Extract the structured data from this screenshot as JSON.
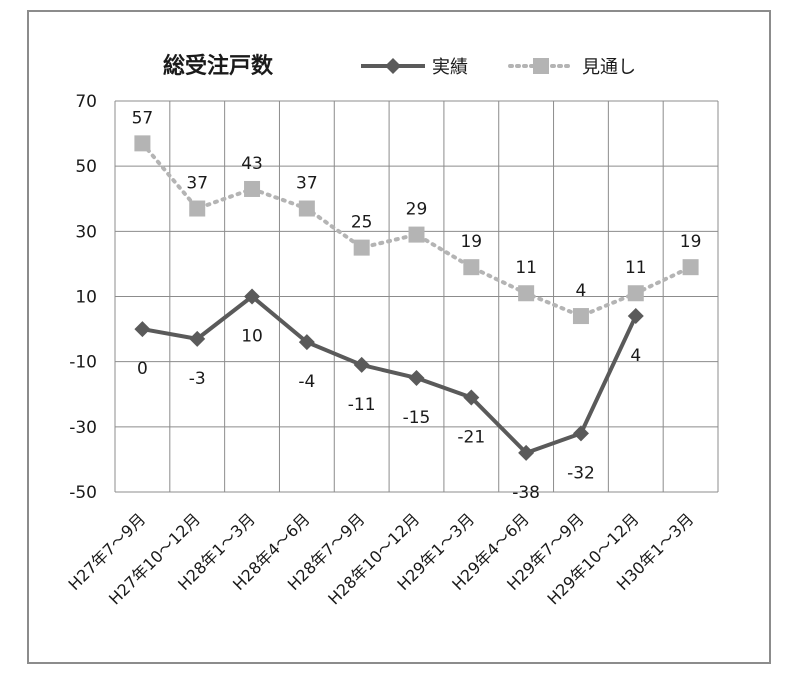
{
  "chart_data": {
    "type": "line",
    "title": "総受注戸数",
    "categories": [
      "H27年7～9月",
      "H27年10～12月",
      "H28年1～3月",
      "H28年4～6月",
      "H28年7～9月",
      "H28年10～12月",
      "H29年1～3月",
      "H29年4～6月",
      "H29年7～9月",
      "H29年10～12月",
      "H30年1～3月"
    ],
    "series": [
      {
        "name": "実績",
        "values": [
          0,
          -3,
          10,
          -4,
          -11,
          -15,
          -21,
          -38,
          -32,
          4,
          null
        ],
        "color": "#5a5a5a",
        "marker": "diamond",
        "line": "solid"
      },
      {
        "name": "見通し",
        "values": [
          57,
          37,
          43,
          37,
          25,
          29,
          19,
          11,
          4,
          11,
          19
        ],
        "color": "#b4b4b4",
        "marker": "square",
        "line": "dotted"
      }
    ],
    "yticks": [
      70,
      50,
      30,
      10,
      -10,
      -30,
      -50
    ],
    "ylim": [
      -50,
      70
    ],
    "grid": true,
    "legend_position": "top-right"
  }
}
